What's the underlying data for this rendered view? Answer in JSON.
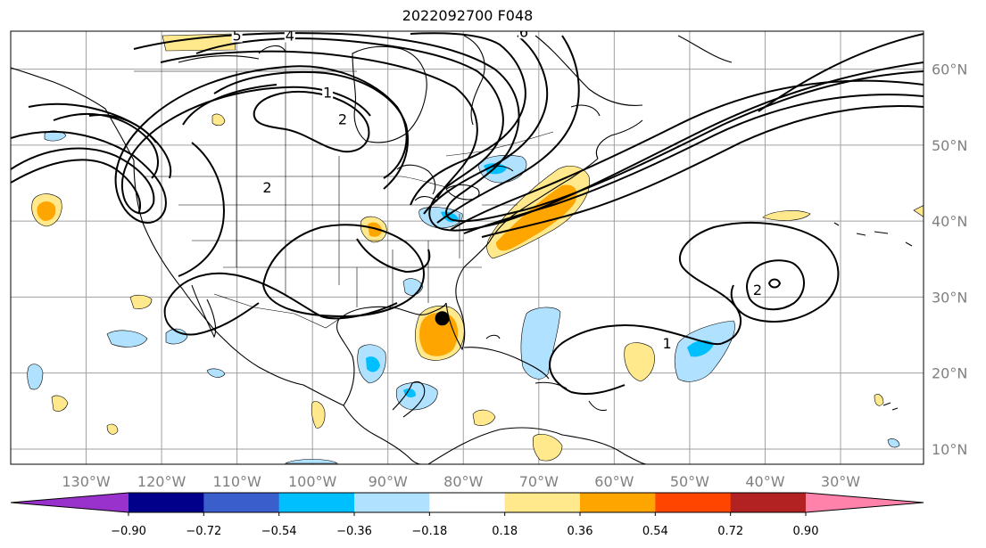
{
  "title": "2022092700 F048",
  "map": {
    "lon_range": [
      -140,
      -19
    ],
    "lat_range": [
      8,
      65
    ],
    "lon_ticks": [
      {
        "lon": -130,
        "label": "130°W"
      },
      {
        "lon": -120,
        "label": "120°W"
      },
      {
        "lon": -110,
        "label": "110°W"
      },
      {
        "lon": -100,
        "label": "100°W"
      },
      {
        "lon": -90,
        "label": "90°W"
      },
      {
        "lon": -80,
        "label": "80°W"
      },
      {
        "lon": -70,
        "label": "70°W"
      },
      {
        "lon": -60,
        "label": "60°W"
      },
      {
        "lon": -50,
        "label": "50°W"
      },
      {
        "lon": -40,
        "label": "40°W"
      },
      {
        "lon": -30,
        "label": "30°W"
      }
    ],
    "lat_ticks": [
      {
        "lat": 60,
        "label": "60°N"
      },
      {
        "lat": 50,
        "label": "50°N"
      },
      {
        "lat": 40,
        "label": "40°N"
      },
      {
        "lat": 30,
        "label": "30°N"
      },
      {
        "lat": 20,
        "label": "20°N"
      },
      {
        "lat": 10,
        "label": "10°N"
      }
    ],
    "grid": true,
    "storm_center": {
      "lon": -82.8,
      "lat": 27.2
    },
    "contour_labels": [
      {
        "text": "1",
        "lon": -98,
        "lat": 56.5
      },
      {
        "text": "2",
        "lon": -96,
        "lat": 53
      },
      {
        "text": "2",
        "lon": -106,
        "lat": 44
      },
      {
        "text": "2",
        "lon": -41,
        "lat": 30.5
      },
      {
        "text": "1",
        "lon": -53,
        "lat": 23.5
      },
      {
        "text": "5",
        "lon": -110,
        "lat": 64
      },
      {
        "text": "4",
        "lon": -103,
        "lat": 64
      },
      {
        "text": "6",
        "lon": -72,
        "lat": 64.5
      }
    ]
  },
  "colorbar": {
    "colors": [
      "#9932cc",
      "#00008b",
      "#3a5fcd",
      "#00bfff",
      "#b0e2ff",
      "#ffffff",
      "#ffe98c",
      "#ffa500",
      "#ff4500",
      "#b22222",
      "#ff82ab"
    ],
    "tick_labels": [
      "−0.90",
      "−0.72",
      "−0.54",
      "−0.36",
      "−0.18",
      "0.18",
      "0.36",
      "0.54",
      "0.72",
      "0.90"
    ]
  }
}
